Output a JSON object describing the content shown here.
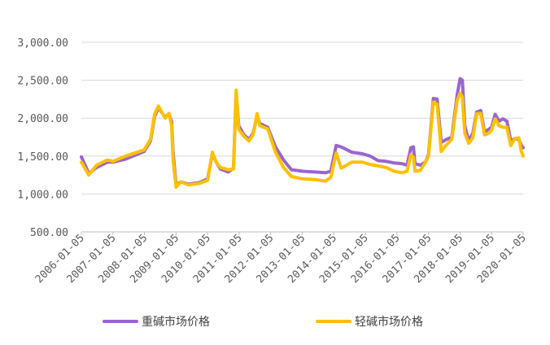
{
  "chart_data": {
    "type": "line",
    "title": "",
    "xlabel": "",
    "ylabel": "",
    "ylim": [
      500,
      3000
    ],
    "yticks": [
      "3,000.00",
      "2,500.00",
      "2,000.00",
      "1,500.00",
      "1,000.00",
      "500.00"
    ],
    "ytick_values": [
      3000,
      2500,
      2000,
      1500,
      1000,
      500
    ],
    "xticks": [
      "2006-01-05",
      "2007-01-05",
      "2008-01-05",
      "2009-01-05",
      "2010-01-05",
      "2011-01-05",
      "2012-01-05",
      "2013-01-05",
      "2014-01-05",
      "2015-01-05",
      "2016-01-05",
      "2017-01-05",
      "2018-01-05",
      "2019-01-05",
      "2020-01-05"
    ],
    "xlim": [
      "2006-01-05",
      "2020-01-05"
    ],
    "grid": true,
    "legend_position": "bottom",
    "series": [
      {
        "name": "重碱市场价格",
        "color": "#9966cc",
        "points": [
          [
            "2006-01-05",
            1490
          ],
          [
            "2006-04-01",
            1270
          ],
          [
            "2006-07-01",
            1350
          ],
          [
            "2006-11-01",
            1420
          ],
          [
            "2007-01-05",
            1420
          ],
          [
            "2007-06-01",
            1460
          ],
          [
            "2008-01-01",
            1560
          ],
          [
            "2008-03-15",
            1700
          ],
          [
            "2008-05-01",
            2020
          ],
          [
            "2008-06-15",
            2140
          ],
          [
            "2008-09-01",
            2010
          ],
          [
            "2008-10-15",
            2060
          ],
          [
            "2008-11-15",
            1950
          ],
          [
            "2008-12-01",
            1550
          ],
          [
            "2009-01-05",
            1120
          ],
          [
            "2009-03-01",
            1160
          ],
          [
            "2009-06-01",
            1130
          ],
          [
            "2009-10-01",
            1150
          ],
          [
            "2010-01-05",
            1200
          ],
          [
            "2010-03-01",
            1530
          ],
          [
            "2010-04-15",
            1420
          ],
          [
            "2010-06-01",
            1330
          ],
          [
            "2010-09-01",
            1290
          ],
          [
            "2010-11-01",
            1340
          ],
          [
            "2010-12-01",
            2330
          ],
          [
            "2011-01-01",
            1900
          ],
          [
            "2011-03-01",
            1780
          ],
          [
            "2011-05-01",
            1720
          ],
          [
            "2011-06-15",
            1800
          ],
          [
            "2011-08-01",
            2030
          ],
          [
            "2011-09-01",
            1930
          ],
          [
            "2011-12-01",
            1880
          ],
          [
            "2012-03-01",
            1620
          ],
          [
            "2012-06-01",
            1450
          ],
          [
            "2012-09-01",
            1320
          ],
          [
            "2013-01-05",
            1300
          ],
          [
            "2013-06-01",
            1290
          ],
          [
            "2013-10-01",
            1280
          ],
          [
            "2013-12-01",
            1300
          ],
          [
            "2014-02-01",
            1640
          ],
          [
            "2014-04-01",
            1620
          ],
          [
            "2014-08-01",
            1550
          ],
          [
            "2014-12-01",
            1530
          ],
          [
            "2015-03-01",
            1500
          ],
          [
            "2015-06-01",
            1440
          ],
          [
            "2015-09-01",
            1430
          ],
          [
            "2015-12-01",
            1410
          ],
          [
            "2016-03-01",
            1400
          ],
          [
            "2016-05-01",
            1380
          ],
          [
            "2016-06-15",
            1610
          ],
          [
            "2016-07-15",
            1620
          ],
          [
            "2016-08-01",
            1400
          ],
          [
            "2016-10-01",
            1380
          ],
          [
            "2016-12-01",
            1420
          ],
          [
            "2017-01-05",
            1520
          ],
          [
            "2017-03-01",
            2260
          ],
          [
            "2017-04-15",
            2250
          ],
          [
            "2017-06-01",
            1680
          ],
          [
            "2017-08-01",
            1720
          ],
          [
            "2017-10-01",
            1750
          ],
          [
            "2017-12-01",
            2300
          ],
          [
            "2018-01-05",
            2520
          ],
          [
            "2018-02-01",
            2500
          ],
          [
            "2018-03-01",
            1900
          ],
          [
            "2018-04-15",
            1700
          ],
          [
            "2018-06-01",
            1800
          ],
          [
            "2018-07-15",
            2080
          ],
          [
            "2018-09-01",
            2100
          ],
          [
            "2018-10-15",
            1820
          ],
          [
            "2018-12-01",
            1850
          ],
          [
            "2019-01-05",
            1880
          ],
          [
            "2019-02-15",
            2050
          ],
          [
            "2019-04-01",
            1960
          ],
          [
            "2019-05-15",
            1990
          ],
          [
            "2019-07-01",
            1960
          ],
          [
            "2019-08-15",
            1700
          ],
          [
            "2019-10-01",
            1730
          ],
          [
            "2019-11-15",
            1720
          ],
          [
            "2019-12-15",
            1640
          ],
          [
            "2020-01-05",
            1610
          ]
        ]
      },
      {
        "name": "轻碱市场价格",
        "color": "#ffc000",
        "points": [
          [
            "2006-01-05",
            1420
          ],
          [
            "2006-04-01",
            1250
          ],
          [
            "2006-07-01",
            1380
          ],
          [
            "2006-11-01",
            1450
          ],
          [
            "2007-01-05",
            1430
          ],
          [
            "2007-06-01",
            1500
          ],
          [
            "2008-01-01",
            1580
          ],
          [
            "2008-03-15",
            1720
          ],
          [
            "2008-05-01",
            2050
          ],
          [
            "2008-06-15",
            2160
          ],
          [
            "2008-09-01",
            2000
          ],
          [
            "2008-10-15",
            2060
          ],
          [
            "2008-11-15",
            1900
          ],
          [
            "2008-12-01",
            1450
          ],
          [
            "2009-01-05",
            1090
          ],
          [
            "2009-03-01",
            1160
          ],
          [
            "2009-06-01",
            1120
          ],
          [
            "2009-10-01",
            1140
          ],
          [
            "2010-01-05",
            1180
          ],
          [
            "2010-03-01",
            1550
          ],
          [
            "2010-04-15",
            1420
          ],
          [
            "2010-06-01",
            1350
          ],
          [
            "2010-09-01",
            1320
          ],
          [
            "2010-11-01",
            1330
          ],
          [
            "2010-12-01",
            2370
          ],
          [
            "2011-01-01",
            1850
          ],
          [
            "2011-03-01",
            1760
          ],
          [
            "2011-05-01",
            1700
          ],
          [
            "2011-06-15",
            1780
          ],
          [
            "2011-08-01",
            2060
          ],
          [
            "2011-09-01",
            1900
          ],
          [
            "2011-12-01",
            1860
          ],
          [
            "2012-03-01",
            1550
          ],
          [
            "2012-06-01",
            1350
          ],
          [
            "2012-09-01",
            1230
          ],
          [
            "2013-01-05",
            1200
          ],
          [
            "2013-06-01",
            1190
          ],
          [
            "2013-10-01",
            1170
          ],
          [
            "2013-12-01",
            1220
          ],
          [
            "2014-02-01",
            1540
          ],
          [
            "2014-04-01",
            1340
          ],
          [
            "2014-08-01",
            1420
          ],
          [
            "2014-12-01",
            1420
          ],
          [
            "2015-03-01",
            1390
          ],
          [
            "2015-06-01",
            1370
          ],
          [
            "2015-09-01",
            1350
          ],
          [
            "2015-12-01",
            1300
          ],
          [
            "2016-03-01",
            1280
          ],
          [
            "2016-05-01",
            1300
          ],
          [
            "2016-06-15",
            1520
          ],
          [
            "2016-07-15",
            1480
          ],
          [
            "2016-08-01",
            1300
          ],
          [
            "2016-10-01",
            1310
          ],
          [
            "2016-12-01",
            1420
          ],
          [
            "2017-01-05",
            1500
          ],
          [
            "2017-03-01",
            2210
          ],
          [
            "2017-04-15",
            2180
          ],
          [
            "2017-06-01",
            1560
          ],
          [
            "2017-08-01",
            1650
          ],
          [
            "2017-10-01",
            1720
          ],
          [
            "2017-12-01",
            2230
          ],
          [
            "2018-01-05",
            2330
          ],
          [
            "2018-02-01",
            2280
          ],
          [
            "2018-03-01",
            1800
          ],
          [
            "2018-04-15",
            1670
          ],
          [
            "2018-06-01",
            1740
          ],
          [
            "2018-07-15",
            2060
          ],
          [
            "2018-09-01",
            2060
          ],
          [
            "2018-10-15",
            1780
          ],
          [
            "2018-12-01",
            1800
          ],
          [
            "2019-01-05",
            1840
          ],
          [
            "2019-02-15",
            1990
          ],
          [
            "2019-04-01",
            1900
          ],
          [
            "2019-05-15",
            1880
          ],
          [
            "2019-07-01",
            1880
          ],
          [
            "2019-08-15",
            1640
          ],
          [
            "2019-10-01",
            1730
          ],
          [
            "2019-11-15",
            1740
          ],
          [
            "2019-12-15",
            1560
          ],
          [
            "2020-01-05",
            1500
          ]
        ]
      }
    ]
  }
}
